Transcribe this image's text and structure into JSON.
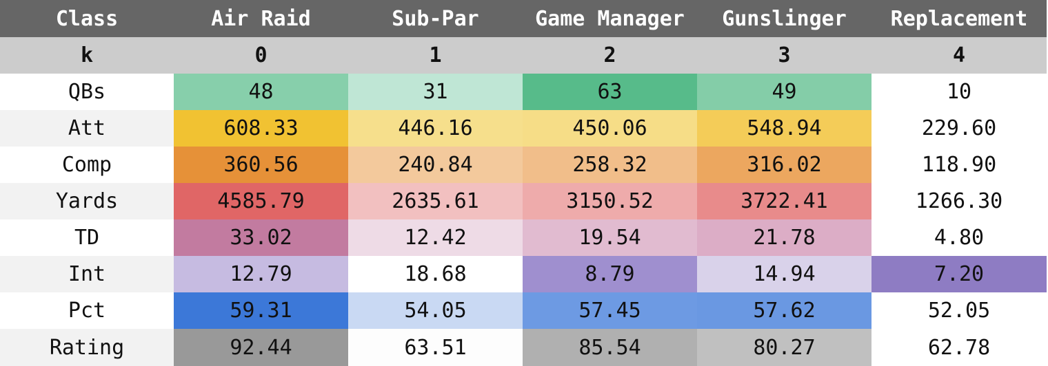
{
  "header": {
    "class_label": "Class",
    "k_label": "k",
    "classes": [
      "Air Raid",
      "Sub-Par",
      "Game Manager",
      "Gunslinger",
      "Replacement"
    ],
    "k_values": [
      "0",
      "1",
      "2",
      "3",
      "4"
    ]
  },
  "rows": [
    {
      "label": "QBs",
      "values": [
        "48",
        "31",
        "63",
        "49",
        "10"
      ],
      "colors": [
        "#87cfab",
        "#bfe6d5",
        "#57bb8a",
        "#84cda8",
        "#ffffff"
      ]
    },
    {
      "label": "Att",
      "values": [
        "608.33",
        "446.16",
        "450.06",
        "548.94",
        "229.60"
      ],
      "colors": [
        "#f1c232",
        "#f6df8c",
        "#f6dd87",
        "#f4cc58",
        "#ffffff"
      ]
    },
    {
      "label": "Comp",
      "values": [
        "360.56",
        "240.84",
        "258.32",
        "316.02",
        "118.90"
      ],
      "colors": [
        "#e69138",
        "#f3c99c",
        "#f1be8a",
        "#eca75f",
        "#ffffff"
      ]
    },
    {
      "label": "Yards",
      "values": [
        "4585.79",
        "2635.61",
        "3150.52",
        "3722.41",
        "1266.30"
      ],
      "colors": [
        "#e06666",
        "#f2c0c0",
        "#eeabab",
        "#e88b8b",
        "#ffffff"
      ]
    },
    {
      "label": "TD",
      "values": [
        "33.02",
        "12.42",
        "19.54",
        "21.78",
        "4.80"
      ],
      "colors": [
        "#c27ba0",
        "#eedbe6",
        "#e1bbd0",
        "#dcadc6",
        "#ffffff"
      ]
    },
    {
      "label": "Int",
      "values": [
        "12.79",
        "18.68",
        "8.79",
        "14.94",
        "7.20"
      ],
      "colors": [
        "#c6bbe1",
        "#ffffff",
        "#9f8fcf",
        "#d9d2ea",
        "#8e7cc3"
      ]
    },
    {
      "label": "Pct",
      "values": [
        "59.31",
        "54.05",
        "57.45",
        "57.62",
        "52.05"
      ],
      "colors": [
        "#3c78d8",
        "#c9d9f3",
        "#6d9ae3",
        "#6a98e2",
        "#ffffff"
      ]
    },
    {
      "label": "Rating",
      "values": [
        "92.44",
        "63.51",
        "85.54",
        "80.27",
        "62.78"
      ],
      "colors": [
        "#999999",
        "#fdfdfd",
        "#b0b0b0",
        "#c0c0c0",
        "#ffffff"
      ]
    }
  ]
}
